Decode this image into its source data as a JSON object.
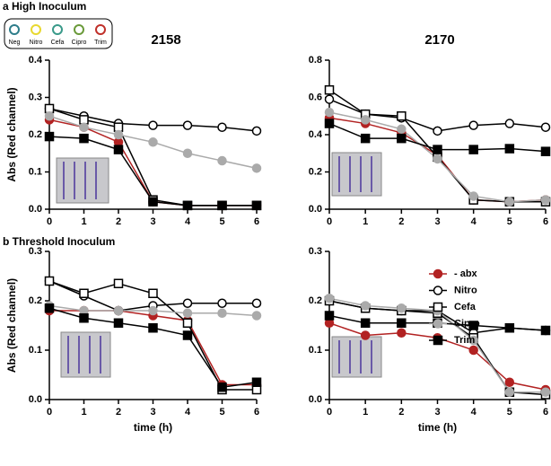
{
  "plate_key": {
    "labels": [
      "Neg",
      "Nitro",
      "Cefa",
      "Cipro",
      "Trim"
    ],
    "colors": [
      "#2e7d8a",
      "#e8d830",
      "#3a9a8a",
      "#6a9a3a",
      "#c0302a"
    ]
  },
  "chart_data": [
    {
      "type": "line",
      "panel_label": "a High Inoculum",
      "title": "2158",
      "y_label": "Abs (Red channel)",
      "x": [
        0,
        1,
        2,
        3,
        4,
        5,
        6
      ],
      "xlim": [
        0,
        6
      ],
      "xticks": [
        0,
        1,
        2,
        3,
        4,
        5,
        6
      ],
      "ylim": [
        0,
        0.4
      ],
      "yticks": [
        {
          "value": 0,
          "label": "0.0"
        },
        0.1,
        0.2,
        0.3,
        0.4
      ],
      "series": [
        {
          "name": "- abx",
          "color": "#b22222",
          "marker": "circle-filled",
          "values": [
            0.24,
            0.22,
            0.18,
            0.02,
            0.01,
            0.01,
            0.01
          ]
        },
        {
          "name": "Nitro",
          "color": "#000000",
          "marker": "circle-open",
          "values": [
            0.27,
            0.25,
            0.23,
            0.225,
            0.225,
            0.22,
            0.21
          ]
        },
        {
          "name": "Cefa",
          "color": "#000000",
          "marker": "square-open",
          "values": [
            0.27,
            0.24,
            0.22,
            0.025,
            0.01,
            0.01,
            0.01
          ]
        },
        {
          "name": "Cipro",
          "color": "#aaaaaa",
          "marker": "circle-filled",
          "values": [
            0.25,
            0.22,
            0.2,
            0.18,
            0.15,
            0.13,
            0.11
          ]
        },
        {
          "name": "Trim",
          "color": "#000000",
          "marker": "square-filled",
          "values": [
            0.195,
            0.19,
            0.16,
            0.02,
            0.01,
            0.01,
            0.01
          ]
        }
      ]
    },
    {
      "type": "line",
      "title": "2170",
      "x": [
        0,
        1,
        2,
        3,
        4,
        5,
        6
      ],
      "xlim": [
        0,
        6
      ],
      "xticks": [
        0,
        1,
        2,
        3,
        4,
        5,
        6
      ],
      "ylim": [
        0,
        0.8
      ],
      "yticks": [
        {
          "value": 0,
          "label": "0.0"
        },
        0.2,
        0.4,
        0.6,
        0.8
      ],
      "series": [
        {
          "name": "- abx",
          "color": "#b22222",
          "marker": "circle-filled",
          "values": [
            0.49,
            0.46,
            0.41,
            0.29,
            0.05,
            0.04,
            0.05
          ]
        },
        {
          "name": "Nitro",
          "color": "#000000",
          "marker": "circle-open",
          "values": [
            0.59,
            0.51,
            0.49,
            0.42,
            0.45,
            0.46,
            0.44
          ]
        },
        {
          "name": "Cefa",
          "color": "#000000",
          "marker": "square-open",
          "values": [
            0.64,
            0.51,
            0.5,
            0.28,
            0.05,
            0.04,
            0.04
          ]
        },
        {
          "name": "Cipro",
          "color": "#aaaaaa",
          "marker": "circle-filled",
          "values": [
            0.52,
            0.48,
            0.43,
            0.27,
            0.07,
            0.04,
            0.05
          ]
        },
        {
          "name": "Trim",
          "color": "#000000",
          "marker": "square-filled",
          "values": [
            0.46,
            0.38,
            0.38,
            0.32,
            0.32,
            0.325,
            0.31
          ]
        }
      ]
    },
    {
      "type": "line",
      "panel_label": "b Threshold Inoculum",
      "y_label": "Abs (Red channel)",
      "x_label": "time (h)",
      "x": [
        0,
        1,
        2,
        3,
        4,
        5,
        6
      ],
      "xlim": [
        0,
        6
      ],
      "xticks": [
        0,
        1,
        2,
        3,
        4,
        5,
        6
      ],
      "ylim": [
        0,
        0.3
      ],
      "yticks": [
        {
          "value": 0,
          "label": "0.0"
        },
        0.1,
        0.2,
        0.3
      ],
      "series": [
        {
          "name": "- abx",
          "color": "#b22222",
          "marker": "circle-filled",
          "values": [
            0.18,
            0.18,
            0.18,
            0.17,
            0.16,
            0.03,
            0.03
          ]
        },
        {
          "name": "Nitro",
          "color": "#000000",
          "marker": "circle-open",
          "values": [
            0.24,
            0.21,
            0.18,
            0.19,
            0.195,
            0.195,
            0.195
          ]
        },
        {
          "name": "Cefa",
          "color": "#000000",
          "marker": "square-open",
          "values": [
            0.24,
            0.215,
            0.235,
            0.215,
            0.155,
            0.02,
            0.02
          ]
        },
        {
          "name": "Cipro",
          "color": "#aaaaaa",
          "marker": "circle-filled",
          "values": [
            0.19,
            0.18,
            0.18,
            0.18,
            0.175,
            0.175,
            0.17
          ]
        },
        {
          "name": "Trim",
          "color": "#000000",
          "marker": "square-filled",
          "values": [
            0.185,
            0.165,
            0.155,
            0.145,
            0.13,
            0.025,
            0.035
          ]
        }
      ]
    },
    {
      "type": "line",
      "x_label": "time (h)",
      "legend": "upper-left",
      "x": [
        0,
        1,
        2,
        3,
        4,
        5,
        6
      ],
      "xlim": [
        0,
        6
      ],
      "xticks": [
        0,
        1,
        2,
        3,
        4,
        5,
        6
      ],
      "ylim": [
        0,
        0.3
      ],
      "yticks": [
        {
          "value": 0,
          "label": "0.0"
        },
        0.1,
        0.2,
        0.3
      ],
      "series": [
        {
          "name": "- abx",
          "color": "#b22222",
          "marker": "circle-filled",
          "values": [
            0.155,
            0.13,
            0.135,
            0.125,
            0.1,
            0.035,
            0.02
          ]
        },
        {
          "name": "Nitro",
          "color": "#000000",
          "marker": "circle-open",
          "values": [
            0.2,
            0.185,
            0.18,
            0.18,
            0.135,
            0.145,
            0.14
          ]
        },
        {
          "name": "Cefa",
          "color": "#000000",
          "marker": "square-open",
          "values": [
            0.2,
            0.185,
            0.18,
            0.175,
            0.125,
            0.015,
            0.01
          ]
        },
        {
          "name": "Cipro",
          "color": "#aaaaaa",
          "marker": "circle-filled",
          "values": [
            0.205,
            0.19,
            0.185,
            0.18,
            0.12,
            0.015,
            0.015
          ]
        },
        {
          "name": "Trim",
          "color": "#000000",
          "marker": "square-filled",
          "values": [
            0.17,
            0.155,
            0.155,
            0.155,
            0.15,
            0.145,
            0.14
          ]
        }
      ]
    }
  ]
}
